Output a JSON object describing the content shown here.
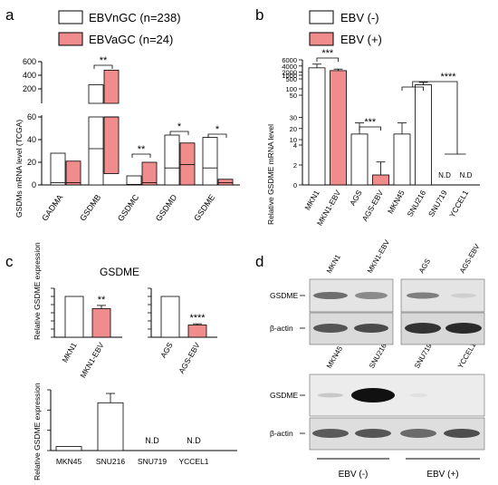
{
  "panels": {
    "a": "a",
    "b": "b",
    "c": "c",
    "d": "d"
  },
  "colors": {
    "ebv_pos": "#f08c8c",
    "ebv_neg": "#ffffff",
    "outline": "#000000"
  },
  "chart_data": [
    {
      "id": "a",
      "type": "bar",
      "title": "",
      "ylabel": "GSDMs mRNA level (TCGA)",
      "categories": [
        "GADMA",
        "GSDMB",
        "GSDMC",
        "GSDMD",
        "GSDME"
      ],
      "series": [
        {
          "name": "EBVnGC (n=238)",
          "color": "#ffffff",
          "box": [
            [
              0,
              28,
              2
            ],
            [
              0,
              300,
              32
            ],
            [
              0,
              8,
              0.5
            ],
            [
              0,
              44,
              15
            ],
            [
              0,
              42,
              15
            ]
          ]
        },
        {
          "name": "EBVaGC (n=24)",
          "color": "#f08c8c",
          "box": [
            [
              0,
              21,
              2
            ],
            [
              10,
              490,
              60
            ],
            [
              0,
              20,
              2
            ],
            [
              0,
              37,
              18
            ],
            [
              0,
              5,
              2
            ]
          ]
        }
      ],
      "yticks_bottom": [
        "0",
        "20",
        "40",
        "60"
      ],
      "yticks_top": [
        "200",
        "400",
        "600"
      ],
      "ylim_bottom": [
        0,
        60
      ],
      "ylim_top": [
        60,
        600
      ],
      "significance": [
        {
          "category": "GSDMB",
          "label": "**"
        },
        {
          "category": "GSDMC",
          "label": "**"
        },
        {
          "category": "GSDMD",
          "label": "*"
        },
        {
          "category": "GSDME",
          "label": "*"
        }
      ]
    },
    {
      "id": "b",
      "type": "bar",
      "ylabel": "Relative GSDME mRNA  level",
      "categories": [
        "MKN1",
        "MKN1-EBV",
        "AGS",
        "AGS-EBV",
        "MKN45",
        "SNU216",
        "SNU719",
        "YCCEL1"
      ],
      "values": [
        3400,
        2500,
        15,
        1,
        15,
        260,
        0,
        0
      ],
      "errors": [
        1200,
        500,
        10,
        1.3,
        10,
        100,
        0,
        0
      ],
      "bar_colors": [
        "#ffffff",
        "#f08c8c",
        "#ffffff",
        "#f08c8c",
        "#ffffff",
        "#ffffff",
        "#ffffff",
        "#ffffff"
      ],
      "labels": [
        "",
        "",
        "",
        "",
        "",
        "",
        "N.D",
        "N.D"
      ],
      "legend": [
        {
          "name": "EBV (-)",
          "color": "#ffffff"
        },
        {
          "name": "EBV (+)",
          "color": "#f08c8c"
        }
      ],
      "yticks": [
        "0",
        "2",
        "4",
        "10",
        "20",
        "30",
        "50",
        "100",
        "500",
        "1000",
        "2000",
        "4000",
        "6000"
      ],
      "significance": [
        {
          "pair": [
            "MKN1",
            "MKN1-EBV"
          ],
          "label": "***"
        },
        {
          "pair": [
            "AGS",
            "AGS-EBV"
          ],
          "label": "***"
        },
        {
          "pair": [
            "MKN45/SNU216",
            "SNU719/YCCEL1"
          ],
          "label": "****"
        }
      ]
    },
    {
      "id": "c1",
      "type": "bar",
      "title": "GSDME",
      "ylabel": "Relative GSDME expression",
      "categories": [
        "MKN1",
        "MKN1-EBV"
      ],
      "values": [
        1.0,
        0.7
      ],
      "errors": [
        0,
        0.08
      ],
      "bar_colors": [
        "#ffffff",
        "#f08c8c"
      ],
      "ylim": [
        0,
        1.2
      ],
      "significance": [
        {
          "category": "MKN1-EBV",
          "label": "**"
        }
      ]
    },
    {
      "id": "c2",
      "type": "bar",
      "categories": [
        "AGS",
        "AGS-EBV"
      ],
      "values": [
        1.0,
        0.3
      ],
      "errors": [
        0,
        0.03
      ],
      "bar_colors": [
        "#ffffff",
        "#f08c8c"
      ],
      "ylim": [
        0,
        1.2
      ],
      "significance": [
        {
          "category": "AGS-EBV",
          "label": "****"
        }
      ]
    },
    {
      "id": "c3",
      "type": "bar",
      "ylabel": "Relative GSDME expression",
      "categories": [
        "MKN45",
        "SNU216",
        "SNU719",
        "YCCEL1"
      ],
      "values": [
        1.0,
        11.8,
        0,
        0
      ],
      "errors": [
        0,
        2.3,
        0,
        0
      ],
      "bar_colors": [
        "#ffffff",
        "#ffffff",
        "#ffffff",
        "#ffffff"
      ],
      "labels": [
        "",
        "",
        "N.D",
        "N.D"
      ],
      "ylim": [
        0,
        15
      ]
    }
  ],
  "western_blot": {
    "top_lanes": [
      "MKN1",
      "MKN1-EBV",
      "AGS",
      "AGS-EBV"
    ],
    "bottom_lanes": [
      "MKN45",
      "SNU216",
      "SNU719",
      "YCCEL1"
    ],
    "row_labels": [
      "GSDME",
      "β-actin",
      "GSDME",
      "β-actin"
    ],
    "group_labels": [
      "EBV (-)",
      "EBV (+)"
    ]
  }
}
